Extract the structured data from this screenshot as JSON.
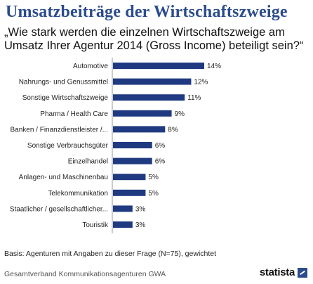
{
  "title": "Umsatzbeiträge der Wirtschaftszweige",
  "subtitle": "„Wie stark werden die einzelnen Wirtschaftszweige am Umsatz Ihrer Agentur 2014 (Gross Income) beteiligt sein?“",
  "basis": "Basis: Agenturen mit Angaben zu dieser Frage (N=75), gewichtet",
  "source": "Gesamtverband Kommunikationsagenturen GWA",
  "logo": "statista",
  "colors": {
    "bar": "#1f3a80",
    "title": "#2b4c8c"
  },
  "chart_data": {
    "type": "bar",
    "orientation": "horizontal",
    "categories": [
      "Automotive",
      "Nahrungs- und Genussmittel",
      "Sonstige Wirtschaftszweige",
      "Pharma / Health Care",
      "Banken / Finanzdienstleister /...",
      "Sonstige Verbrauchsgüter",
      "Einzelhandel",
      "Anlagen- und Maschinenbau",
      "Telekommunikation",
      "Staatlicher / gesellschaftlicher...",
      "Touristik"
    ],
    "values": [
      14,
      12,
      11,
      9,
      8,
      6,
      6,
      5,
      5,
      3,
      3
    ],
    "value_labels": [
      "14%",
      "12%",
      "11%",
      "9%",
      "8%",
      "6%",
      "6%",
      "5%",
      "5%",
      "3%",
      "3%"
    ],
    "xlim": [
      0,
      14
    ],
    "grid": false
  }
}
